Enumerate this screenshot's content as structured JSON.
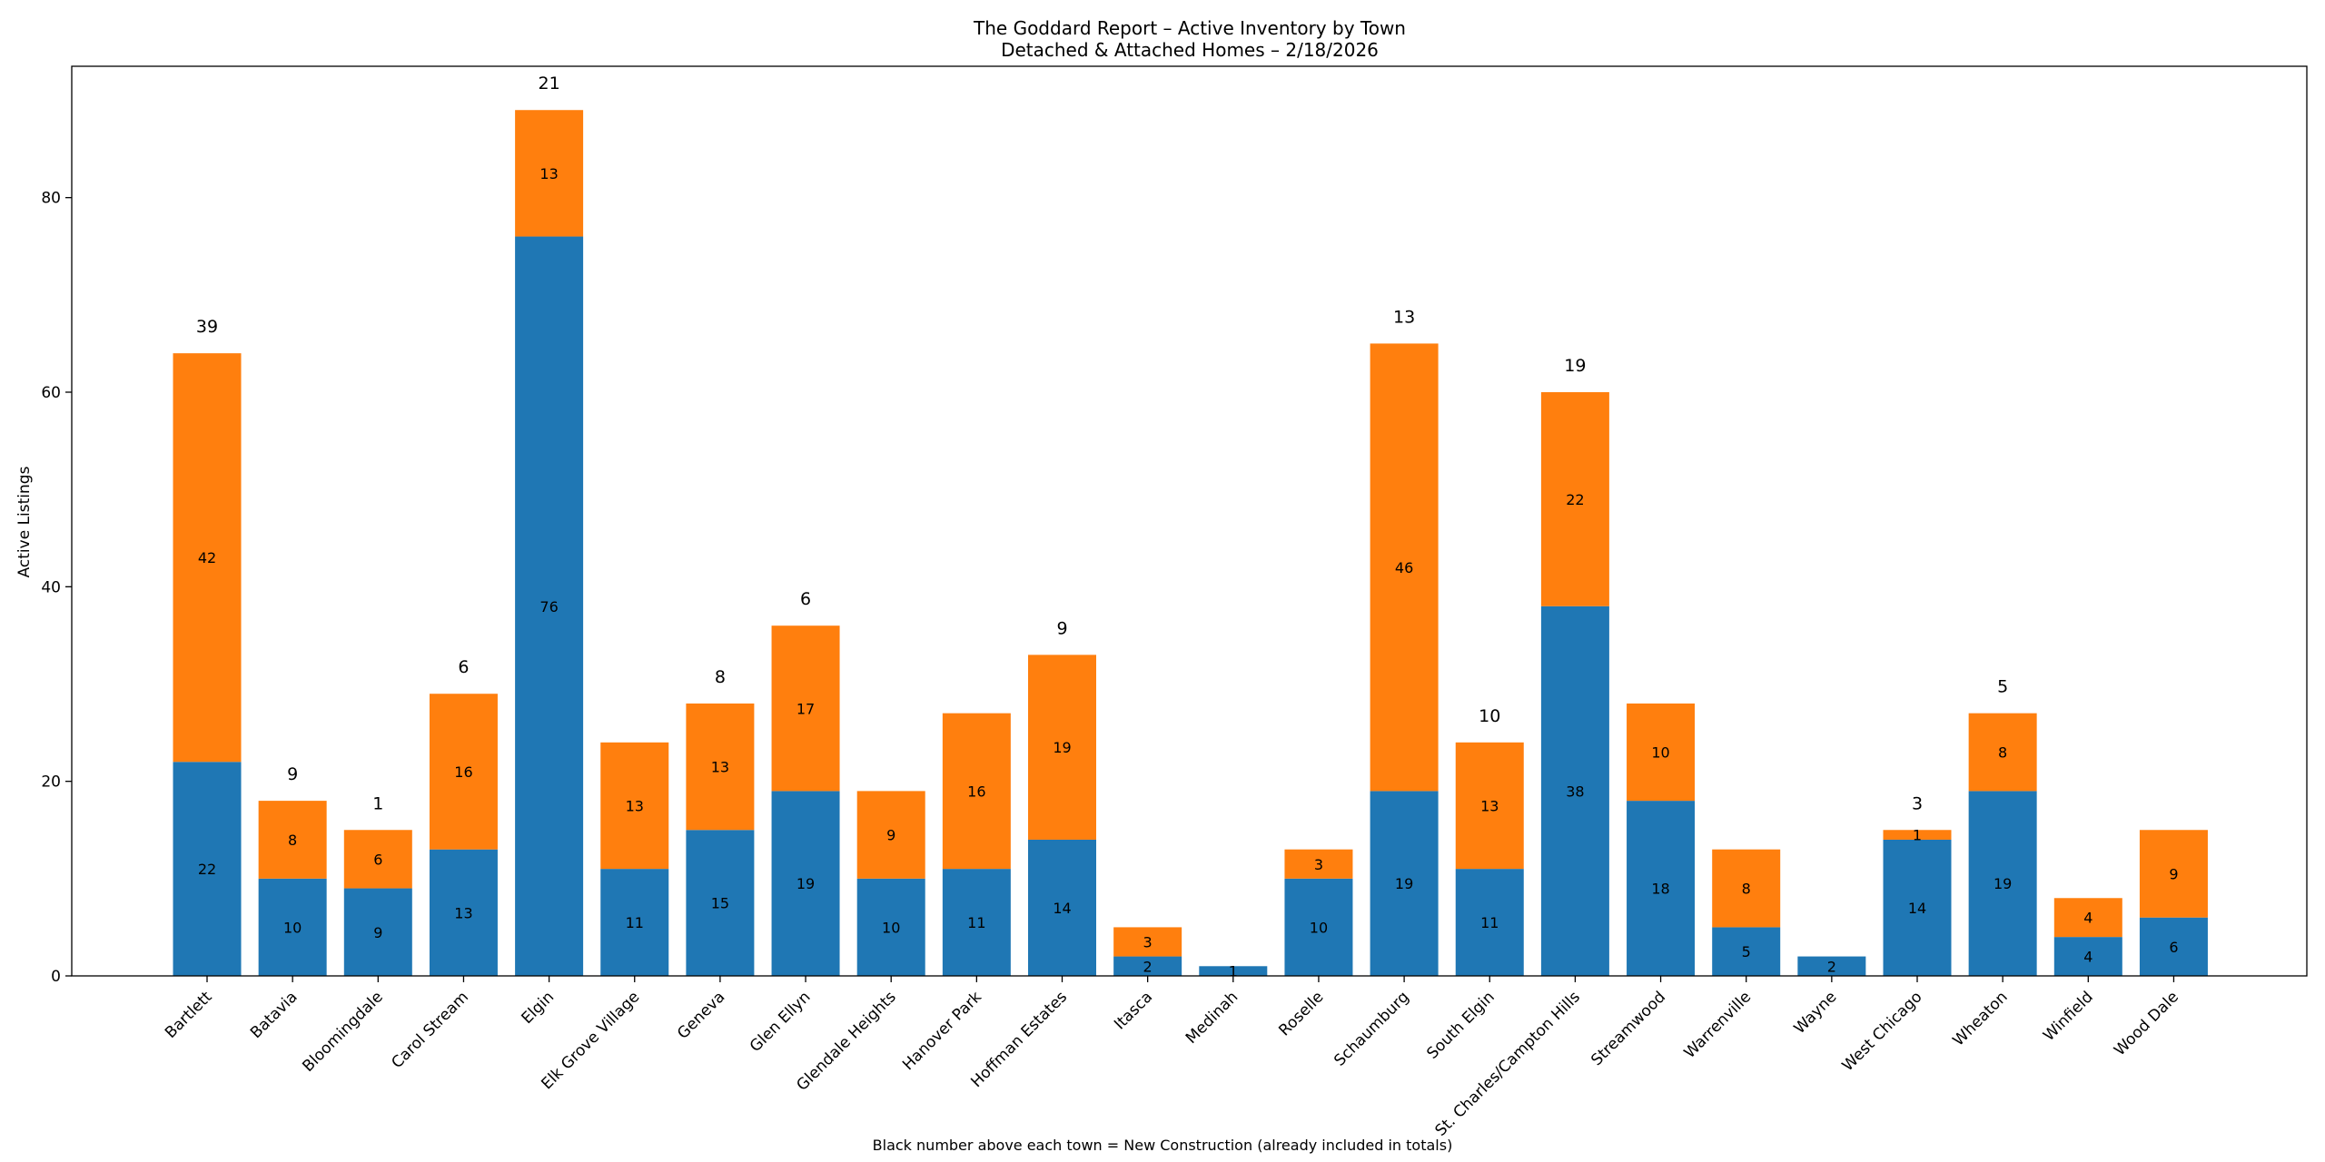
{
  "chart_data": {
    "type": "bar",
    "stacked": true,
    "title": "The Goddard Report – Active Inventory by Town",
    "subtitle": "Detached & Attached Homes – 2/18/2026",
    "xlabel": "",
    "ylabel": "Active Listings",
    "ylim": [
      0,
      93.5
    ],
    "yticks": [
      0,
      20,
      40,
      60,
      80
    ],
    "grid": false,
    "footnote": "Black number above each town = New Construction (already included in totals)",
    "categories": [
      "Bartlett",
      "Batavia",
      "Bloomingdale",
      "Carol Stream",
      "Elgin",
      "Elk Grove Village",
      "Geneva",
      "Glen Ellyn",
      "Glendale Heights",
      "Hanover Park",
      "Hoffman Estates",
      "Itasca",
      "Medinah",
      "Roselle",
      "Schaumburg",
      "South Elgin",
      "St. Charles/Campton Hills",
      "Streamwood",
      "Warrenville",
      "Wayne",
      "West Chicago",
      "Wheaton",
      "Winfield",
      "Wood Dale"
    ],
    "series": [
      {
        "name": "Detached",
        "color": "#1f77b4",
        "values": [
          22,
          10,
          9,
          13,
          76,
          11,
          15,
          19,
          10,
          11,
          14,
          2,
          1,
          10,
          19,
          11,
          38,
          18,
          5,
          2,
          14,
          19,
          4,
          6
        ]
      },
      {
        "name": "Attached",
        "color": "#ff7f0e",
        "values": [
          42,
          8,
          6,
          16,
          13,
          13,
          13,
          17,
          9,
          16,
          19,
          3,
          0,
          3,
          46,
          13,
          22,
          10,
          8,
          0,
          1,
          8,
          4,
          9
        ]
      }
    ],
    "new_construction": [
      39,
      9,
      1,
      6,
      21,
      null,
      8,
      6,
      null,
      null,
      9,
      null,
      null,
      null,
      13,
      10,
      19,
      null,
      null,
      null,
      3,
      5,
      null,
      null
    ]
  }
}
